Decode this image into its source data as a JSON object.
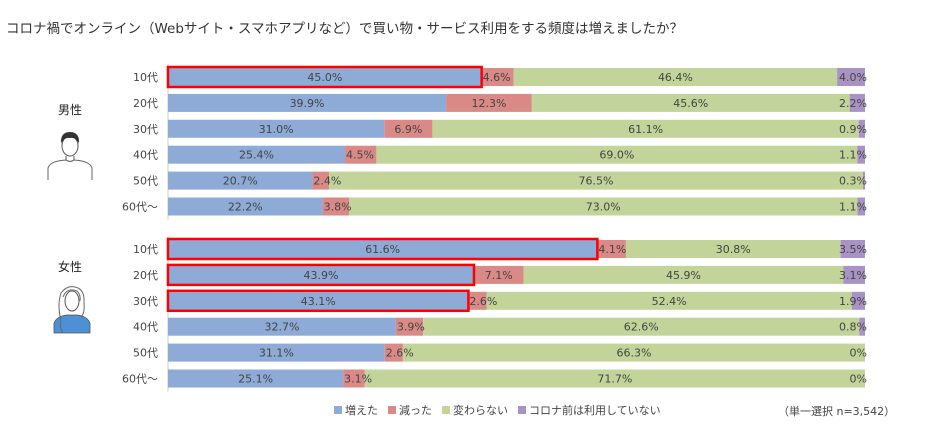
{
  "title": "コロナ禍でオンライン（Webサイト・スマホアプリなど）で買い物・サービス利用をする頻度は増えましたか？",
  "note": "（単一選択 n=3,542）",
  "chart_data": {
    "type": "bar",
    "orientation": "horizontal",
    "stacked": "100%",
    "title": "コロナ禍でオンライン（Webサイト・スマホアプリなど）で買い物・サービス利用をする頻度は増えましたか？",
    "legend_position": "bottom",
    "series": [
      {
        "name": "増えた",
        "color": "#8eaad6"
      },
      {
        "name": "減った",
        "color": "#d98a87"
      },
      {
        "name": "変わらない",
        "color": "#c2d49a"
      },
      {
        "name": "コロナ前は利用していない",
        "color": "#a993c4"
      }
    ],
    "highlight_color": "#ff0000",
    "groups": [
      {
        "label": "男性",
        "icon": "man-avatar-icon",
        "rows": [
          {
            "category": "10代",
            "values": [
              45.0,
              4.6,
              46.4,
              4.0
            ],
            "labels": [
              "45.0%",
              "4.6%",
              "46.4%",
              "4.0%"
            ],
            "highlight": true
          },
          {
            "category": "20代",
            "values": [
              39.9,
              12.3,
              45.6,
              2.2
            ],
            "labels": [
              "39.9%",
              "12.3%",
              "45.6%",
              "2.2%"
            ],
            "highlight": false
          },
          {
            "category": "30代",
            "values": [
              31.0,
              6.9,
              61.1,
              0.9
            ],
            "labels": [
              "31.0%",
              "6.9%",
              "61.1%",
              "0.9%"
            ],
            "highlight": false
          },
          {
            "category": "40代",
            "values": [
              25.4,
              4.5,
              69.0,
              1.1
            ],
            "labels": [
              "25.4%",
              "4.5%",
              "69.0%",
              "1.1%"
            ],
            "highlight": false
          },
          {
            "category": "50代",
            "values": [
              20.7,
              2.4,
              76.5,
              0.3
            ],
            "labels": [
              "20.7%",
              "2.4%",
              "76.5%",
              "0.3%"
            ],
            "highlight": false
          },
          {
            "category": "60代～",
            "values": [
              22.2,
              3.8,
              73.0,
              1.1
            ],
            "labels": [
              "22.2%",
              "3.8%",
              "73.0%",
              "1.1%"
            ],
            "highlight": false
          }
        ]
      },
      {
        "label": "女性",
        "icon": "woman-avatar-icon",
        "rows": [
          {
            "category": "10代",
            "values": [
              61.6,
              4.1,
              30.8,
              3.5
            ],
            "labels": [
              "61.6%",
              "4.1%",
              "30.8%",
              "3.5%"
            ],
            "highlight": true
          },
          {
            "category": "20代",
            "values": [
              43.9,
              7.1,
              45.9,
              3.1
            ],
            "labels": [
              "43.9%",
              "7.1%",
              "45.9%",
              "3.1%"
            ],
            "highlight": true
          },
          {
            "category": "30代",
            "values": [
              43.1,
              2.6,
              52.4,
              1.9
            ],
            "labels": [
              "43.1%",
              "2.6%",
              "52.4%",
              "1.9%"
            ],
            "highlight": true
          },
          {
            "category": "40代",
            "values": [
              32.7,
              3.9,
              62.6,
              0.8
            ],
            "labels": [
              "32.7%",
              "3.9%",
              "62.6%",
              "0.8%"
            ],
            "highlight": false
          },
          {
            "category": "50代",
            "values": [
              31.1,
              2.6,
              66.3,
              0
            ],
            "labels": [
              "31.1%",
              "2.6%",
              "66.3%",
              "0%"
            ],
            "highlight": false
          },
          {
            "category": "60代～",
            "values": [
              25.1,
              3.1,
              71.7,
              0
            ],
            "labels": [
              "25.1%",
              "3.1%",
              "71.7%",
              "0%"
            ],
            "highlight": false
          }
        ]
      }
    ]
  }
}
